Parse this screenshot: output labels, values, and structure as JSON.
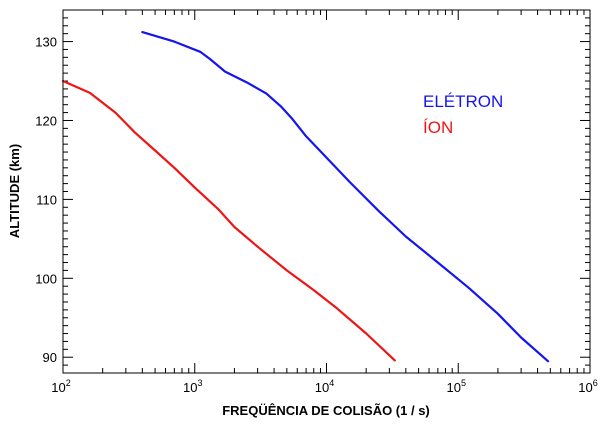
{
  "chart_data": {
    "type": "line",
    "xlabel": "FREQÜÊNCIA DE COLISÃO (1 / s)",
    "ylabel": "ALTITUDE (km)",
    "x_scale": "log",
    "xlim": [
      100,
      1000000
    ],
    "ylim": [
      88,
      134
    ],
    "x_ticks": [
      {
        "value": 100,
        "base": "10",
        "exp": "2"
      },
      {
        "value": 1000,
        "base": "10",
        "exp": "3"
      },
      {
        "value": 10000,
        "base": "10",
        "exp": "4"
      },
      {
        "value": 100000,
        "base": "10",
        "exp": "5"
      },
      {
        "value": 1000000,
        "base": "10",
        "exp": "6"
      }
    ],
    "y_ticks": [
      90,
      100,
      110,
      120,
      130
    ],
    "grid": false,
    "legend_position": "right",
    "series": [
      {
        "name": "ELÉTRON",
        "color": "#1515ee",
        "points": [
          [
            400,
            131.2
          ],
          [
            700,
            130.0
          ],
          [
            1100,
            128.7
          ],
          [
            1300,
            127.8
          ],
          [
            1700,
            126.2
          ],
          [
            2500,
            124.8
          ],
          [
            3500,
            123.4
          ],
          [
            4500,
            121.8
          ],
          [
            5500,
            120.2
          ],
          [
            7000,
            118.0
          ],
          [
            10000,
            115.3
          ],
          [
            15000,
            112.2
          ],
          [
            25000,
            108.5
          ],
          [
            40000,
            105.3
          ],
          [
            70000,
            102.0
          ],
          [
            120000,
            98.8
          ],
          [
            200000,
            95.5
          ],
          [
            300000,
            92.5
          ],
          [
            480000,
            89.5
          ]
        ]
      },
      {
        "name": "ÍON",
        "color": "#ee1515",
        "points": [
          [
            100,
            125.0
          ],
          [
            160,
            123.5
          ],
          [
            250,
            121.0
          ],
          [
            350,
            118.5
          ],
          [
            500,
            116.2
          ],
          [
            700,
            114.0
          ],
          [
            1000,
            111.5
          ],
          [
            1500,
            108.8
          ],
          [
            2000,
            106.5
          ],
          [
            3000,
            104.0
          ],
          [
            5000,
            101.0
          ],
          [
            8000,
            98.5
          ],
          [
            12000,
            96.2
          ],
          [
            20000,
            93.0
          ],
          [
            33000,
            89.6
          ]
        ]
      }
    ]
  }
}
